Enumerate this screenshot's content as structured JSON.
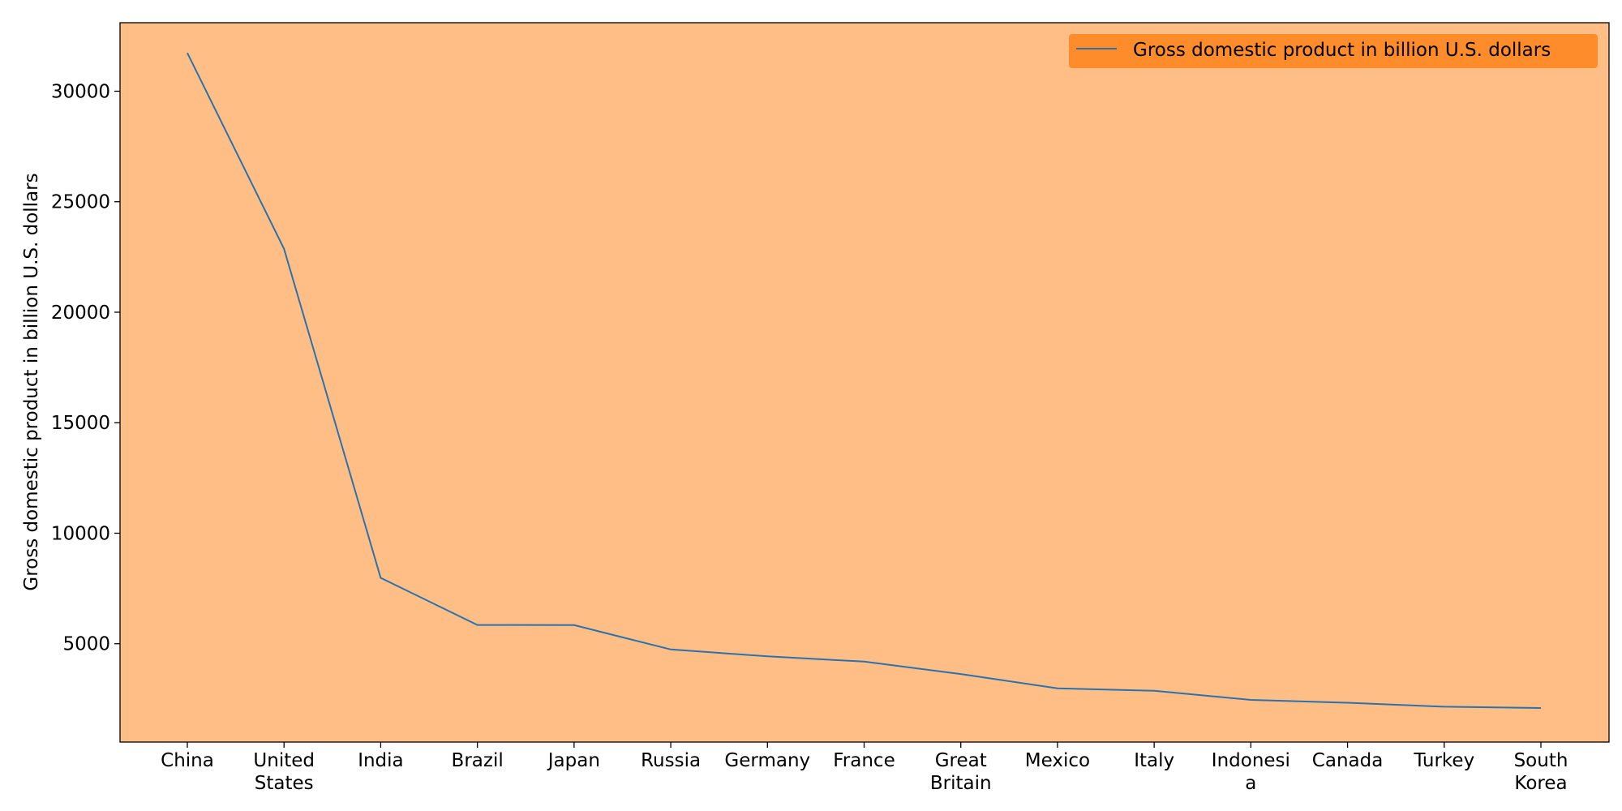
{
  "chart_data": {
    "type": "line",
    "title": "",
    "xlabel": "",
    "ylabel": "Gross domestic product in billion U.S. dollars",
    "categories": [
      "China",
      "United States",
      "India",
      "Brazil",
      "Japan",
      "Russia",
      "Germany",
      "France",
      "Great Britain",
      "Mexico",
      "Italy",
      "Indonesia",
      "Canada",
      "Turkey",
      "South Korea"
    ],
    "category_label_lines": [
      [
        "China"
      ],
      [
        "United",
        "States"
      ],
      [
        "India"
      ],
      [
        "Brazil"
      ],
      [
        "Japan"
      ],
      [
        "Russia"
      ],
      [
        "Germany"
      ],
      [
        "France"
      ],
      [
        "Great",
        "Britain"
      ],
      [
        "Mexico"
      ],
      [
        "Italy"
      ],
      [
        "Indonesi",
        "a"
      ],
      [
        "Canada"
      ],
      [
        "Turkey"
      ],
      [
        "South",
        "Korea"
      ]
    ],
    "series": [
      {
        "name": "Gross domestic product in billion U.S. dollars",
        "values": [
          31730,
          22870,
          7980,
          5850,
          5840,
          4740,
          4430,
          4190,
          3630,
          2980,
          2870,
          2460,
          2330,
          2150,
          2090
        ]
      }
    ],
    "ylim": [
      550,
      33100
    ],
    "yticks": [
      5000,
      10000,
      15000,
      20000,
      25000,
      30000
    ],
    "legend_position": "top-right",
    "grid": false,
    "colors": {
      "plot_background": "#ffbe86",
      "line": "#2b72ad",
      "legend_background": "#ff8c2b",
      "axis": "#000000"
    }
  }
}
